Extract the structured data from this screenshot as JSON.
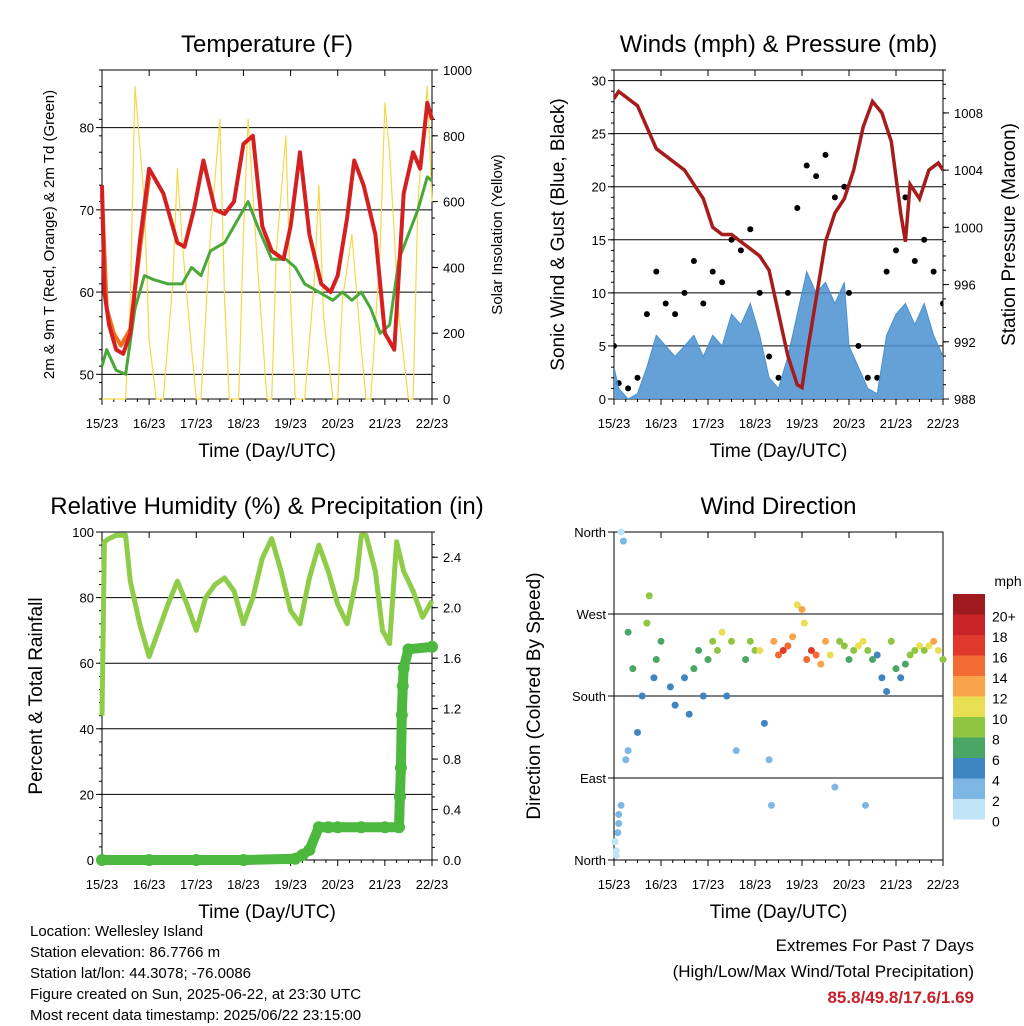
{
  "chart_data": [
    {
      "id": "temperature",
      "type": "line",
      "title": "Temperature (F)",
      "xlabel": "Time (Day/UTC)",
      "ylabel": "2m & 9m T (Red, Orange) & 2m Td (Green)",
      "ylabel_right": "Solar Insolation (Yellow)",
      "x_ticks": [
        "15/23",
        "16/23",
        "17/23",
        "18/23",
        "19/23",
        "20/23",
        "21/23",
        "22/23"
      ],
      "xlim": [
        0,
        7
      ],
      "ylim": [
        47,
        87
      ],
      "y_ticks": [
        50,
        60,
        70,
        80
      ],
      "y2lim": [
        0,
        1000
      ],
      "y2_ticks": [
        0,
        200,
        400,
        600,
        800,
        1000
      ],
      "grid": "horizontal",
      "series": [
        {
          "name": "2m T",
          "axis": "left",
          "color": "#d42020",
          "x": [
            0,
            0.05,
            0.15,
            0.3,
            0.45,
            0.6,
            0.8,
            1.0,
            1.3,
            1.6,
            1.75,
            1.95,
            2.15,
            2.4,
            2.6,
            2.8,
            3.0,
            3.2,
            3.4,
            3.6,
            3.85,
            4.0,
            4.2,
            4.4,
            4.65,
            4.85,
            5.0,
            5.2,
            5.35,
            5.55,
            5.8,
            6.0,
            6.2,
            6.4,
            6.6,
            6.75,
            6.9,
            7.0
          ],
          "y": [
            73,
            60,
            56,
            53,
            52.5,
            55,
            66,
            75,
            72,
            66,
            65.5,
            70,
            76,
            70,
            69.5,
            71,
            78,
            79,
            68,
            65,
            64,
            68,
            77,
            67,
            61,
            60,
            62,
            69,
            76,
            73,
            67,
            55,
            53,
            72,
            77,
            75,
            83,
            81
          ]
        },
        {
          "name": "9m T",
          "axis": "left",
          "color": "#f07020",
          "x": [
            0,
            0.1,
            0.25,
            0.4,
            0.6,
            0.8,
            1.0
          ],
          "y": [
            72,
            58,
            55,
            53.5,
            55.5,
            65,
            74
          ]
        },
        {
          "name": "2m Td",
          "axis": "left",
          "color": "#4aa83a",
          "x": [
            0,
            0.1,
            0.3,
            0.5,
            0.7,
            0.9,
            1.1,
            1.4,
            1.7,
            1.9,
            2.1,
            2.3,
            2.6,
            2.9,
            3.1,
            3.3,
            3.6,
            3.9,
            4.1,
            4.3,
            4.6,
            4.9,
            5.1,
            5.3,
            5.5,
            5.7,
            5.9,
            6.1,
            6.3,
            6.5,
            6.7,
            6.9,
            7.0
          ],
          "y": [
            51,
            53,
            50.5,
            50,
            58,
            62,
            61.5,
            61,
            61,
            63,
            62,
            65,
            66,
            69,
            71,
            68,
            64,
            64,
            63,
            61,
            60,
            59,
            60,
            59,
            60,
            58,
            55,
            56,
            64,
            67,
            70,
            74,
            73.5
          ]
        },
        {
          "name": "Solar Insolation",
          "axis": "right",
          "color": "#f5d84a",
          "x": [
            0,
            0.5,
            0.6,
            0.7,
            0.9,
            1.0,
            1.15,
            1.3,
            1.5,
            1.6,
            1.7,
            1.9,
            2.0,
            2.1,
            2.3,
            2.5,
            2.6,
            2.7,
            2.9,
            3.0,
            3.1,
            3.3,
            3.5,
            3.6,
            3.7,
            3.9,
            4.0,
            4.1,
            4.3,
            4.5,
            4.6,
            4.7,
            4.9,
            5.0,
            5.1,
            5.3,
            5.5,
            5.6,
            5.7,
            5.9,
            6.0,
            6.1,
            6.3,
            6.5,
            6.6,
            6.7,
            6.9,
            7.0
          ],
          "y": [
            0,
            0,
            300,
            950,
            600,
            180,
            0,
            0,
            350,
            700,
            480,
            150,
            0,
            0,
            500,
            850,
            300,
            0,
            0,
            500,
            850,
            400,
            0,
            0,
            450,
            800,
            300,
            0,
            0,
            350,
            650,
            250,
            0,
            0,
            300,
            500,
            150,
            0,
            0,
            450,
            900,
            750,
            250,
            0,
            0,
            600,
            950,
            600
          ]
        }
      ]
    },
    {
      "id": "winds",
      "type": "scatter",
      "title": "Winds (mph) & Pressure (mb)",
      "xlabel": "Time (Day/UTC)",
      "ylabel": "Sonic Wind & Gust (Blue, Black)",
      "ylabel_right": "Station Pressure (Maroon)",
      "x_ticks": [
        "15/23",
        "16/23",
        "17/23",
        "18/23",
        "19/23",
        "20/23",
        "21/23",
        "22/23"
      ],
      "xlim": [
        0,
        7
      ],
      "ylim": [
        0,
        31
      ],
      "y_ticks": [
        0,
        5,
        10,
        15,
        20,
        25,
        30
      ],
      "y2lim": [
        988,
        1011
      ],
      "y2_ticks": [
        988,
        992,
        996,
        1000,
        1004,
        1008
      ],
      "grid": "horizontal",
      "series": [
        {
          "name": "Sonic Wind",
          "axis": "left",
          "color": "#4a90d0",
          "x": [
            0,
            0.1,
            0.3,
            0.5,
            0.7,
            0.9,
            1.1,
            1.3,
            1.5,
            1.7,
            1.9,
            2.1,
            2.3,
            2.5,
            2.7,
            2.9,
            3.1,
            3.3,
            3.5,
            3.7,
            3.9,
            4.1,
            4.3,
            4.5,
            4.7,
            4.9,
            5.0,
            5.2,
            5.4,
            5.6,
            5.8,
            6.0,
            6.2,
            6.4,
            6.6,
            6.8,
            7.0
          ],
          "y": [
            3,
            1,
            0,
            0.5,
            3,
            6,
            5,
            4,
            5,
            6,
            4,
            6,
            5,
            8,
            7,
            9,
            6,
            2,
            1,
            4,
            8,
            12,
            10,
            11,
            9,
            11,
            5,
            3,
            1,
            0.5,
            6,
            8,
            9,
            7,
            9,
            6,
            4
          ]
        },
        {
          "name": "Gust",
          "axis": "left",
          "color": "#000000",
          "x": [
            0,
            0.1,
            0.3,
            0.5,
            0.7,
            0.9,
            1.1,
            1.3,
            1.5,
            1.7,
            1.9,
            2.1,
            2.3,
            2.5,
            2.7,
            2.9,
            3.1,
            3.3,
            3.5,
            3.7,
            3.9,
            4.1,
            4.3,
            4.5,
            4.7,
            4.9,
            5.0,
            5.2,
            5.4,
            5.6,
            5.8,
            6.0,
            6.2,
            6.4,
            6.6,
            6.8,
            7.0
          ],
          "y": [
            5,
            1.5,
            1,
            2,
            8,
            12,
            9,
            8,
            10,
            13,
            9,
            12,
            11,
            15,
            14,
            16,
            10,
            4,
            2,
            10,
            18,
            22,
            21,
            23,
            19,
            20,
            10,
            5,
            2,
            2,
            12,
            14,
            19,
            13,
            15,
            12,
            9
          ]
        },
        {
          "name": "Station Pressure",
          "axis": "right",
          "color": "#a61c1c",
          "x": [
            0,
            0.1,
            0.3,
            0.5,
            0.7,
            0.9,
            1.1,
            1.3,
            1.5,
            1.7,
            1.9,
            2.1,
            2.3,
            2.5,
            2.7,
            2.9,
            3.1,
            3.3,
            3.5,
            3.7,
            3.9,
            4.0,
            4.1,
            4.3,
            4.5,
            4.7,
            4.9,
            5.1,
            5.3,
            5.5,
            5.7,
            5.9,
            6.1,
            6.2,
            6.3,
            6.5,
            6.7,
            6.9,
            7.0
          ],
          "y": [
            1009,
            1009.5,
            1009,
            1008.5,
            1007,
            1005.5,
            1005,
            1004.5,
            1004,
            1003,
            1002,
            1000,
            999.5,
            999.5,
            999,
            998.5,
            998,
            997,
            994,
            991,
            989,
            988.8,
            991,
            995,
            999,
            1001,
            1002,
            1004,
            1007,
            1008.8,
            1008,
            1006,
            1001,
            999,
            1003,
            1002,
            1004,
            1004.5,
            1004
          ]
        }
      ]
    },
    {
      "id": "humidity",
      "type": "line",
      "title": "Relative Humidity (%) & Precipitation (in)",
      "xlabel": "Time (Day/UTC)",
      "ylabel": "Percent & Total Rainfall",
      "x_ticks": [
        "15/23",
        "16/23",
        "17/23",
        "18/23",
        "19/23",
        "20/23",
        "21/23",
        "22/23"
      ],
      "xlim": [
        0,
        7
      ],
      "ylim": [
        0,
        100
      ],
      "y_ticks": [
        0,
        20,
        40,
        60,
        80,
        100
      ],
      "y2lim": [
        0,
        2.6
      ],
      "y2_ticks": [
        0.0,
        0.4,
        0.8,
        1.2,
        1.6,
        2.0,
        2.4
      ],
      "grid": "horizontal",
      "series": [
        {
          "name": "Relative Humidity",
          "axis": "left",
          "color": "#8fcc4a",
          "x": [
            0,
            0.05,
            0.15,
            0.3,
            0.5,
            0.6,
            0.8,
            1.0,
            1.2,
            1.4,
            1.6,
            1.8,
            2.0,
            2.2,
            2.4,
            2.6,
            2.8,
            3.0,
            3.2,
            3.4,
            3.6,
            3.8,
            4.0,
            4.2,
            4.4,
            4.6,
            4.8,
            5.0,
            5.2,
            5.4,
            5.5,
            5.6,
            5.8,
            5.95,
            6.1,
            6.25,
            6.4,
            6.6,
            6.8,
            7.0
          ],
          "y": [
            44,
            97,
            98,
            99,
            99,
            85,
            72,
            62,
            70,
            78,
            85,
            78,
            70,
            80,
            84,
            86,
            82,
            72,
            80,
            92,
            98,
            88,
            76,
            72,
            86,
            96,
            88,
            78,
            72,
            86,
            99,
            99,
            88,
            70,
            66,
            97,
            88,
            82,
            74,
            79
          ]
        },
        {
          "name": "Total Rainfall",
          "axis": "right",
          "color": "#4cb83e",
          "x": [
            0,
            1,
            2,
            3,
            4.1,
            4.25,
            4.4,
            4.6,
            4.8,
            5.0,
            5.5,
            6.0,
            6.3,
            6.32,
            6.34,
            6.36,
            6.38,
            6.4,
            6.5,
            7.0
          ],
          "y": [
            0,
            0,
            0,
            0,
            0.01,
            0.04,
            0.08,
            0.26,
            0.26,
            0.26,
            0.26,
            0.26,
            0.26,
            0.5,
            0.73,
            1.15,
            1.38,
            1.52,
            1.67,
            1.69
          ]
        }
      ]
    },
    {
      "id": "wind_direction",
      "type": "scatter",
      "title": "Wind Direction",
      "xlabel": "Time (Day/UTC)",
      "ylabel": "Direction (Colored By Speed)",
      "x_ticks": [
        "15/23",
        "16/23",
        "17/23",
        "18/23",
        "19/23",
        "20/23",
        "21/23",
        "22/23"
      ],
      "xlim": [
        0,
        7
      ],
      "ylim": [
        0,
        360
      ],
      "y_tick_values": [
        0,
        90,
        180,
        270,
        360
      ],
      "y_tick_labels": [
        "North",
        "East",
        "South",
        "West",
        "North"
      ],
      "grid": "horizontal",
      "legend_title": "mph",
      "legend_labels": [
        "20+",
        "18",
        "16",
        "14",
        "12",
        "10",
        "8",
        "6",
        "4",
        "2",
        "0"
      ],
      "legend_colors": [
        "#9e1a1e",
        "#c92327",
        "#e0392b",
        "#f26b34",
        "#f9a44a",
        "#e8df52",
        "#8ec641",
        "#4aa763",
        "#3f85c1",
        "#7cb8e3",
        "#bfe3f7"
      ],
      "legend_placement": "right",
      "points": {
        "x": [
          0.02,
          0.05,
          0.08,
          0.1,
          0.15,
          0.2,
          0.25,
          0.3,
          0.05,
          0.1,
          0.15,
          0.3,
          0.4,
          0.5,
          0.6,
          0.7,
          0.75,
          0.85,
          0.9,
          1.0,
          1.2,
          1.3,
          1.5,
          1.6,
          1.7,
          1.8,
          1.9,
          2.0,
          2.1,
          2.2,
          2.3,
          2.4,
          2.5,
          2.6,
          2.8,
          2.9,
          3.0,
          3.1,
          3.2,
          3.3,
          3.35,
          3.4,
          3.5,
          3.6,
          3.7,
          3.8,
          3.9,
          4.0,
          4.05,
          4.1,
          4.2,
          4.3,
          4.4,
          4.5,
          4.6,
          4.7,
          4.8,
          4.9,
          5.0,
          5.1,
          5.2,
          5.3,
          5.35,
          5.4,
          5.5,
          5.6,
          5.7,
          5.8,
          5.9,
          6.0,
          6.1,
          6.2,
          6.3,
          6.4,
          6.5,
          6.6,
          6.7,
          6.8,
          6.9,
          7.0
        ],
        "y": [
          20,
          10,
          30,
          50,
          360,
          350,
          110,
          120,
          5,
          40,
          60,
          250,
          210,
          140,
          180,
          260,
          290,
          200,
          220,
          240,
          190,
          170,
          200,
          160,
          210,
          230,
          180,
          220,
          240,
          230,
          250,
          180,
          240,
          120,
          220,
          240,
          230,
          230,
          150,
          110,
          60,
          240,
          225,
          230,
          235,
          245,
          280,
          275,
          260,
          220,
          230,
          225,
          215,
          240,
          225,
          80,
          240,
          235,
          220,
          230,
          235,
          240,
          60,
          230,
          220,
          225,
          200,
          185,
          240,
          210,
          200,
          215,
          225,
          230,
          235,
          230,
          235,
          240,
          230,
          220
        ],
        "speed": [
          0,
          0,
          1,
          2,
          0,
          1,
          1,
          2,
          0,
          1,
          1,
          6,
          5,
          3,
          4,
          7,
          8,
          4,
          5,
          5,
          4,
          3,
          4,
          3,
          5,
          6,
          4,
          5,
          7,
          8,
          9,
          4,
          8,
          2,
          6,
          7,
          8,
          9,
          3,
          2,
          1,
          12,
          14,
          15,
          13,
          12,
          10,
          11,
          10,
          13,
          15,
          14,
          12,
          11,
          9,
          1,
          8,
          7,
          6,
          8,
          9,
          10,
          2,
          7,
          5,
          4,
          3,
          4,
          8,
          6,
          4,
          5,
          7,
          8,
          9,
          8,
          10,
          11,
          9,
          7
        ]
      }
    }
  ],
  "info": {
    "location": "Location: Wellesley Island",
    "elevation": "Station elevation: 86.7766 m",
    "latlon": "Station lat/lon: 44.3078; -76.0086",
    "created": "Figure created on Sun, 2025-06-22, at 23:30 UTC",
    "recent": "Most recent data timestamp: 2025/06/22 23:15:00"
  },
  "extremes": {
    "title": "Extremes For Past 7 Days",
    "subtitle": "(High/Low/Max Wind/Total Precipitation)",
    "values": "85.8/49.8/17.6/1.69",
    "color": "#c8202a"
  }
}
